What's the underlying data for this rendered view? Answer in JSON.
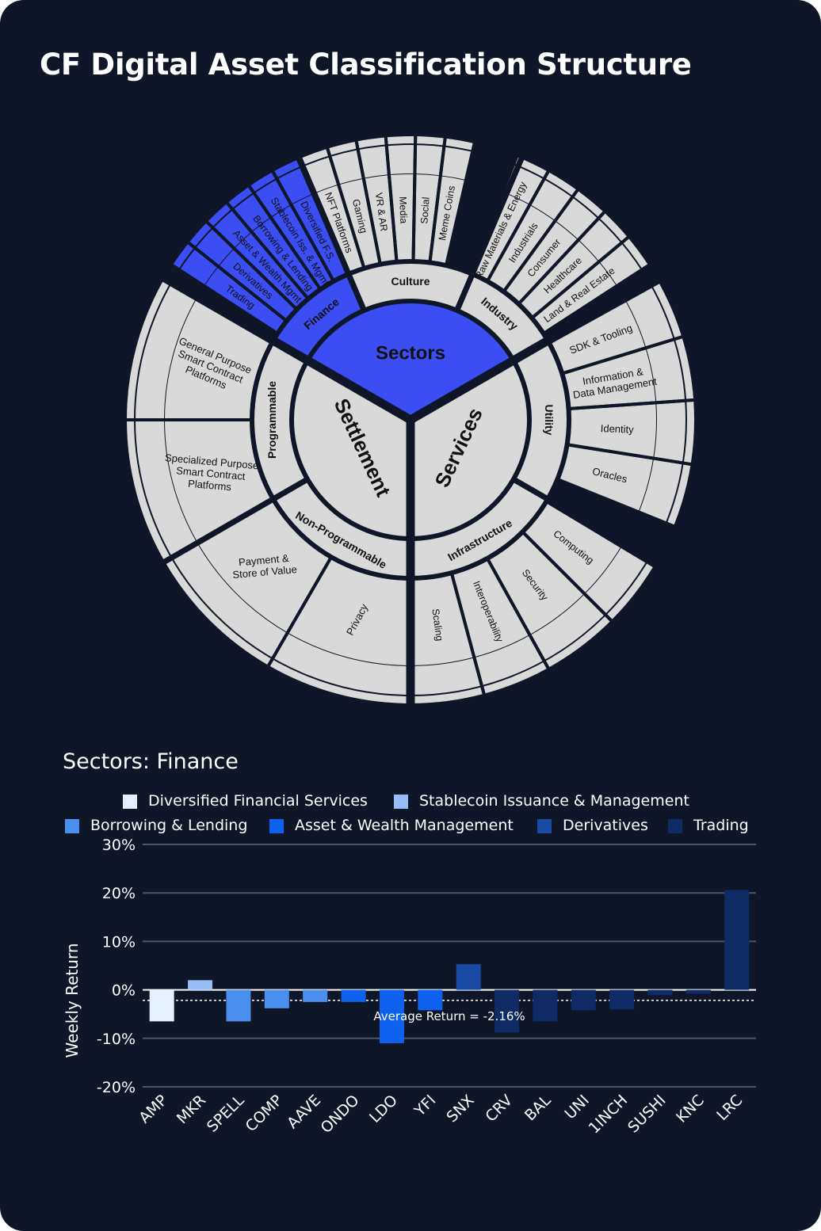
{
  "title": "CF Digital Asset Classification Structure",
  "wheel": {
    "center_label": "Sectors",
    "colors": {
      "background": "#0e1627",
      "segment": "#d9d9d9",
      "highlight": "#3a4ef3",
      "label": "#111111",
      "highlight_label": "#ffffff"
    },
    "groups": [
      {
        "label": "Settlement",
        "subgroups": [
          {
            "label": "Programmable",
            "items": [
              "General Purpose Smart Contract Platforms",
              "Specialized Purpose Smart Contract Platforms"
            ]
          },
          {
            "label": "Non-Programmable",
            "items": [
              "Payment & Store of Value",
              "Privacy"
            ]
          }
        ]
      },
      {
        "label": "Sectors",
        "subgroups": [
          {
            "label": "Finance",
            "items": [
              "Trading",
              "Derivatives",
              "Asset & Wealth Mgmt",
              "Borrowing & Lending",
              "Stablecoin Iss. & Mgmt",
              "Diversified F.S."
            ]
          },
          {
            "label": "Culture",
            "items": [
              "NFT Platforms",
              "Gaming",
              "VR & AR",
              "Media",
              "Social",
              "Meme Coins"
            ]
          },
          {
            "label": "Industry",
            "items": [
              "Raw Materials & Energy",
              "Industrials",
              "Consumer",
              "Healthcare",
              "Land & Real Estate"
            ]
          }
        ]
      },
      {
        "label": "Services",
        "subgroups": [
          {
            "label": "Utility",
            "items": [
              "SDK & Tooling",
              "Information & Data Management",
              "Identity",
              "Oracles"
            ]
          },
          {
            "label": "Infrastructure",
            "items": [
              "Computing",
              "Security",
              "Interoperability",
              "Scaling"
            ]
          }
        ]
      }
    ]
  },
  "chart_subtitle": "Sectors: Finance",
  "legend": [
    {
      "name": "Diversified Financial Services",
      "color": "#e4efff"
    },
    {
      "name": "Stablecoin Issuance & Management",
      "color": "#97bdf7"
    },
    {
      "name": "Borrowing & Lending",
      "color": "#4a8ff0"
    },
    {
      "name": "Asset & Wealth Management",
      "color": "#0d61ee"
    },
    {
      "name": "Derivatives",
      "color": "#1b4aa6"
    },
    {
      "name": "Trading",
      "color": "#0e2b66"
    }
  ],
  "chart_data": {
    "type": "bar",
    "title": "Sectors: Finance",
    "ylabel": "Weekly Return",
    "ylim": [
      -20,
      30
    ],
    "yticks": [
      -20,
      -10,
      0,
      10,
      20,
      30
    ],
    "ytick_labels": [
      "-20%",
      "-10%",
      "0%",
      "10%",
      "20%",
      "30%"
    ],
    "categories": [
      "AMP",
      "MKR",
      "SPELL",
      "COMP",
      "AAVE",
      "ONDO",
      "LDO",
      "YFI",
      "SNX",
      "CRV",
      "BAL",
      "UNI",
      "1INCH",
      "SUSHI",
      "KNC",
      "LRC"
    ],
    "values": [
      -6.5,
      2.0,
      -6.5,
      -3.8,
      -2.5,
      -2.5,
      -11.0,
      -4.2,
      5.3,
      -8.8,
      -6.5,
      -4.2,
      -4.0,
      -1.1,
      -0.8,
      20.6
    ],
    "groups": [
      "Diversified Financial Services",
      "Stablecoin Issuance & Management",
      "Borrowing & Lending",
      "Borrowing & Lending",
      "Borrowing & Lending",
      "Asset & Wealth Management",
      "Asset & Wealth Management",
      "Asset & Wealth Management",
      "Derivatives",
      "Trading",
      "Trading",
      "Trading",
      "Trading",
      "Trading",
      "Trading",
      "Trading"
    ],
    "average": -2.16,
    "average_label": "Average Return = -2.16%",
    "grid": true,
    "legend_position": "top"
  }
}
